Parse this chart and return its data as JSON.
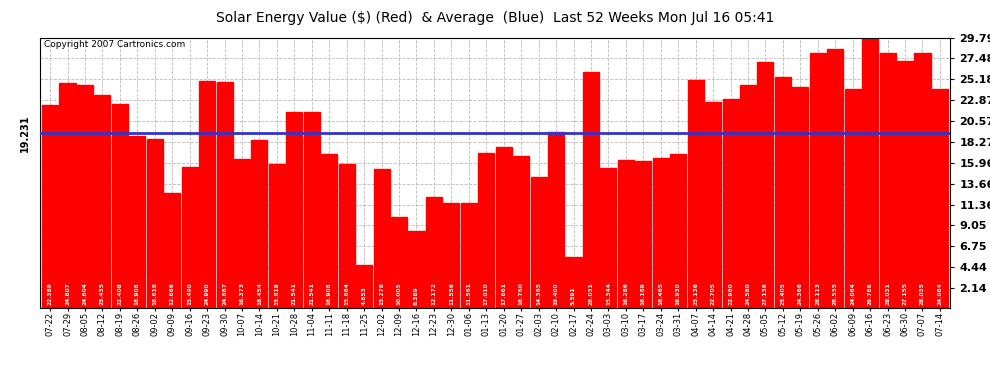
{
  "title": "Solar Energy Value ($) (Red)  & Average  (Blue)  Last 52 Weeks Mon Jul 16 05:41",
  "copyright": "Copyright 2007 Cartronics.com",
  "average": 19.231,
  "yticks": [
    2.14,
    4.44,
    6.75,
    9.05,
    11.36,
    13.66,
    15.96,
    18.27,
    20.57,
    22.87,
    25.18,
    27.48,
    29.79
  ],
  "ymax": 29.79,
  "ymin": 0.0,
  "bar_color": "#ff0000",
  "avg_line_color": "#3333cc",
  "background_color": "#ffffff",
  "grid_color": "#aaaaaa",
  "categories": [
    "07-22",
    "07-29",
    "08-05",
    "08-12",
    "08-19",
    "08-26",
    "09-02",
    "09-09",
    "09-16",
    "09-23",
    "09-30",
    "10-07",
    "10-14",
    "10-21",
    "10-28",
    "11-04",
    "11-11",
    "11-18",
    "11-25",
    "12-02",
    "12-09",
    "12-16",
    "12-23",
    "12-30",
    "01-06",
    "01-13",
    "01-20",
    "01-27",
    "02-03",
    "02-10",
    "02-17",
    "02-24",
    "03-03",
    "03-10",
    "03-17",
    "03-24",
    "03-31",
    "04-07",
    "04-14",
    "04-21",
    "04-28",
    "05-05",
    "05-12",
    "05-19",
    "05-26",
    "06-02",
    "06-09",
    "06-16",
    "06-23",
    "06-30",
    "07-07",
    "07-14"
  ],
  "values": [
    22.389,
    24.807,
    24.604,
    23.435,
    22.408,
    18.908,
    18.618,
    12.666,
    15.49,
    24.99,
    24.887,
    16.373,
    18.454,
    15.819,
    21.541,
    21.541,
    16.908,
    15.864,
    4.653,
    15.278,
    10.005,
    8.389,
    12.172,
    11.556,
    11.561,
    17.01,
    17.661,
    16.76,
    14.365,
    19.4,
    5.591,
    26.031,
    15.344,
    16.286,
    16.189,
    16.465,
    16.93,
    25.136,
    22.705,
    22.96,
    24.58,
    27.136,
    25.405,
    24.366,
    28.113,
    28.535,
    24.064,
    29.786,
    28.031,
    27.155,
    28.035,
    24.064
  ]
}
